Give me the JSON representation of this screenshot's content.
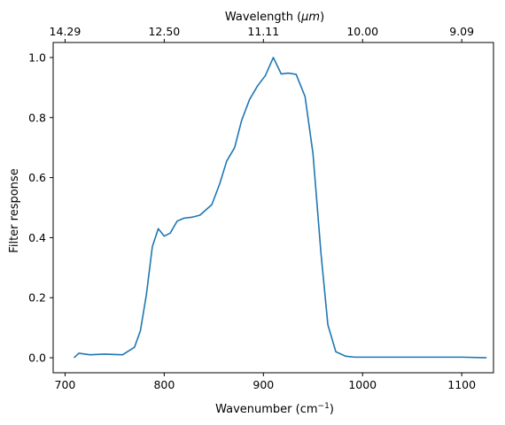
{
  "chart_data": {
    "type": "line",
    "xlabel": "Wavenumber (cm",
    "xlabel_sup": "−1",
    "xlabel_tail": ")",
    "ylabel": "Filter response",
    "top_xlabel": "Wavelength (",
    "top_xlabel_unit": "μm",
    "top_xlabel_tail": ")",
    "xlim": [
      688,
      1132
    ],
    "ylim": [
      -0.05,
      1.05
    ],
    "x_ticks": [
      700,
      800,
      900,
      1000,
      1100
    ],
    "x_tick_labels": [
      "700",
      "800",
      "900",
      "1000",
      "1100"
    ],
    "y_ticks": [
      0.0,
      0.2,
      0.4,
      0.6,
      0.8,
      1.0
    ],
    "y_tick_labels": [
      "0.0",
      "0.2",
      "0.4",
      "0.6",
      "0.8",
      "1.0"
    ],
    "top_ticks_wavenumber": [
      700,
      800,
      900,
      1000,
      1100
    ],
    "top_tick_labels": [
      "14.29",
      "12.50",
      "11.11",
      "10.00",
      "9.09"
    ],
    "line_color": "#1f77b4",
    "grid": false,
    "series": [
      {
        "x": [
          709,
          714,
          725,
          740,
          758,
          770,
          776,
          782,
          788,
          794,
          800,
          806,
          813,
          820,
          828,
          836,
          848,
          856,
          863,
          871,
          878,
          886,
          894,
          902,
          910,
          918,
          925,
          933,
          942,
          950,
          958,
          965,
          973,
          983,
          992,
          1000,
          1050,
          1100,
          1125
        ],
        "y": [
          0.0,
          0.015,
          0.01,
          0.012,
          0.01,
          0.035,
          0.09,
          0.21,
          0.37,
          0.43,
          0.405,
          0.415,
          0.455,
          0.465,
          0.468,
          0.475,
          0.51,
          0.58,
          0.655,
          0.7,
          0.79,
          0.86,
          0.905,
          0.94,
          1.0,
          0.945,
          0.948,
          0.944,
          0.87,
          0.68,
          0.35,
          0.11,
          0.02,
          0.005,
          0.002,
          0.002,
          0.002,
          0.002,
          0.0
        ]
      }
    ]
  }
}
